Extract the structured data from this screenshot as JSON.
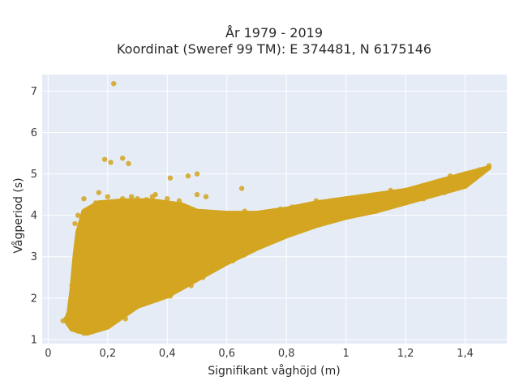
{
  "chart_data": {
    "type": "scatter",
    "title": "År 1979 - 2019",
    "subtitle": "Koordinat (Sweref 99 TM): E 374481, N 6175146",
    "xlabel": "Signifikant våghöjd (m)",
    "ylabel": "Vågperiod (s)",
    "xlim": [
      -0.02,
      1.54
    ],
    "ylim": [
      0.9,
      7.4
    ],
    "grid": true,
    "xticks": [
      {
        "value": 0,
        "label": "0"
      },
      {
        "value": 0.2,
        "label": "0,2"
      },
      {
        "value": 0.4,
        "label": "0,4"
      },
      {
        "value": 0.6,
        "label": "0,6"
      },
      {
        "value": 0.8,
        "label": "0,8"
      },
      {
        "value": 1.0,
        "label": "1"
      },
      {
        "value": 1.2,
        "label": "1,2"
      },
      {
        "value": 1.4,
        "label": "1,4"
      }
    ],
    "yticks": [
      {
        "value": 1,
        "label": "1"
      },
      {
        "value": 2,
        "label": "2"
      },
      {
        "value": 3,
        "label": "3"
      },
      {
        "value": 4,
        "label": "4"
      },
      {
        "value": 5,
        "label": "5"
      },
      {
        "value": 6,
        "label": "6"
      },
      {
        "value": 7,
        "label": "7"
      }
    ],
    "series": [
      {
        "color": "#d4a520",
        "points": [
          [
            0.22,
            7.18
          ],
          [
            0.19,
            5.35
          ],
          [
            0.25,
            5.38
          ],
          [
            0.21,
            5.28
          ],
          [
            0.27,
            5.25
          ],
          [
            0.5,
            5.0
          ],
          [
            0.47,
            4.95
          ],
          [
            0.41,
            4.9
          ],
          [
            0.65,
            4.65
          ],
          [
            0.53,
            4.45
          ],
          [
            0.5,
            4.5
          ],
          [
            0.17,
            4.55
          ],
          [
            0.2,
            4.45
          ],
          [
            0.12,
            4.4
          ],
          [
            0.3,
            4.4
          ],
          [
            0.28,
            4.45
          ],
          [
            0.16,
            4.3
          ],
          [
            0.25,
            4.4
          ],
          [
            0.35,
            4.45
          ],
          [
            0.33,
            4.38
          ],
          [
            0.4,
            4.4
          ],
          [
            0.44,
            4.35
          ],
          [
            0.36,
            4.5
          ],
          [
            0.1,
            4.0
          ],
          [
            0.14,
            4.1
          ],
          [
            0.18,
            4.2
          ],
          [
            0.09,
            3.8
          ],
          [
            0.11,
            3.75
          ],
          [
            0.06,
            1.5
          ],
          [
            0.07,
            1.45
          ],
          [
            0.05,
            1.45
          ],
          [
            0.08,
            1.35
          ],
          [
            0.09,
            1.3
          ],
          [
            0.1,
            1.2
          ],
          [
            0.12,
            1.15
          ],
          [
            0.14,
            1.2
          ],
          [
            0.15,
            1.25
          ],
          [
            0.11,
            1.25
          ],
          [
            0.13,
            1.3
          ],
          [
            0.07,
            1.6
          ],
          [
            0.08,
            1.7
          ],
          [
            0.09,
            2.0
          ],
          [
            0.08,
            2.3
          ],
          [
            0.09,
            2.6
          ],
          [
            0.1,
            3.0
          ],
          [
            0.1,
            3.4
          ],
          [
            0.11,
            3.2
          ],
          [
            0.12,
            2.8
          ],
          [
            0.13,
            3.5
          ],
          [
            0.45,
            3.6
          ],
          [
            0.5,
            2.6
          ],
          [
            0.5,
            3.2
          ],
          [
            0.55,
            3.0
          ],
          [
            0.48,
            2.3
          ],
          [
            0.43,
            2.2
          ],
          [
            0.38,
            2.1
          ],
          [
            0.36,
            2.0
          ],
          [
            0.33,
            1.9
          ],
          [
            0.3,
            1.85
          ],
          [
            0.27,
            1.7
          ],
          [
            0.24,
            1.6
          ],
          [
            0.41,
            2.05
          ],
          [
            0.46,
            2.4
          ],
          [
            0.52,
            2.5
          ],
          [
            0.58,
            2.8
          ],
          [
            0.62,
            2.9
          ],
          [
            0.66,
            3.05
          ],
          [
            0.6,
            3.3
          ],
          [
            0.56,
            3.5
          ],
          [
            0.64,
            3.7
          ],
          [
            0.7,
            3.8
          ],
          [
            0.72,
            3.6
          ],
          [
            0.78,
            4.15
          ],
          [
            0.82,
            4.2
          ],
          [
            0.86,
            4.2
          ],
          [
            0.9,
            4.35
          ],
          [
            0.95,
            4.35
          ],
          [
            1.0,
            4.4
          ],
          [
            1.05,
            4.45
          ],
          [
            1.1,
            4.45
          ],
          [
            1.15,
            4.6
          ],
          [
            1.2,
            4.6
          ],
          [
            1.25,
            4.7
          ],
          [
            1.3,
            4.8
          ],
          [
            1.35,
            4.95
          ],
          [
            1.4,
            5.0
          ],
          [
            1.45,
            5.1
          ],
          [
            1.48,
            5.2
          ],
          [
            1.44,
            5.05
          ],
          [
            1.38,
            4.95
          ],
          [
            1.32,
            4.8
          ],
          [
            1.27,
            4.7
          ],
          [
            1.22,
            4.55
          ],
          [
            1.17,
            4.5
          ],
          [
            1.12,
            4.45
          ],
          [
            1.07,
            4.4
          ],
          [
            0.74,
            3.45
          ],
          [
            0.8,
            3.55
          ],
          [
            0.85,
            3.7
          ],
          [
            0.9,
            3.8
          ],
          [
            0.95,
            3.9
          ],
          [
            1.0,
            4.0
          ],
          [
            1.05,
            4.05
          ],
          [
            1.1,
            4.1
          ],
          [
            1.15,
            4.2
          ],
          [
            1.2,
            4.3
          ],
          [
            1.26,
            4.4
          ],
          [
            1.33,
            4.55
          ],
          [
            1.4,
            4.7
          ],
          [
            0.68,
            3.4
          ],
          [
            0.64,
            3.25
          ],
          [
            0.7,
            3.55
          ],
          [
            0.76,
            3.8
          ],
          [
            0.3,
            2.5
          ],
          [
            0.25,
            2.8
          ],
          [
            0.2,
            3.0
          ],
          [
            0.18,
            2.6
          ],
          [
            0.22,
            2.2
          ],
          [
            0.28,
            2.0
          ],
          [
            0.32,
            3.2
          ],
          [
            0.27,
            3.5
          ],
          [
            0.23,
            3.7
          ],
          [
            0.2,
            3.9
          ],
          [
            0.35,
            3.8
          ],
          [
            0.4,
            3.1
          ],
          [
            0.15,
            3.6
          ],
          [
            0.16,
            2.9
          ],
          [
            0.14,
            2.2
          ],
          [
            0.17,
            1.9
          ],
          [
            0.19,
            1.6
          ],
          [
            0.21,
            1.45
          ],
          [
            0.26,
            1.5
          ],
          [
            0.2,
            1.35
          ],
          [
            0.18,
            1.4
          ],
          [
            0.16,
            1.55
          ],
          [
            0.55,
            3.9
          ],
          [
            0.6,
            4.0
          ],
          [
            0.62,
            4.05
          ],
          [
            0.66,
            4.1
          ],
          [
            0.58,
            3.7
          ],
          [
            0.52,
            3.5
          ],
          [
            0.47,
            3.3
          ],
          [
            0.43,
            3.4
          ],
          [
            0.38,
            3.0
          ],
          [
            0.34,
            2.7
          ]
        ]
      }
    ]
  }
}
